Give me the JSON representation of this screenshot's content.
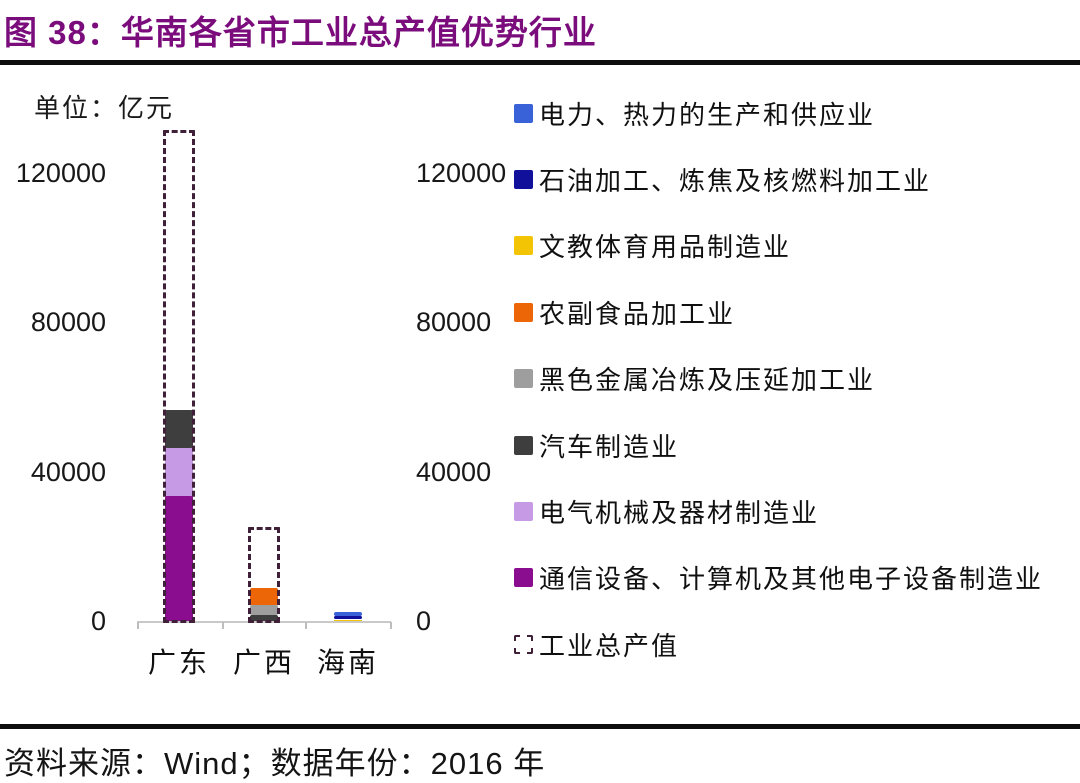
{
  "header": {
    "title": "图 38：华南各省市工业总产值优势行业"
  },
  "chart": {
    "unit_label": "单位：亿元"
  },
  "chart_data": {
    "type": "bar",
    "subtype": "stacked",
    "title": "华南各省市工业总产值优势行业",
    "unit": "亿元",
    "categories": [
      "广东",
      "广西",
      "海南"
    ],
    "series": [
      {
        "name": "电力、热力的生产和供应业",
        "color": "#3a62d8",
        "values": [
          0,
          0,
          1000
        ]
      },
      {
        "name": "石油加工、炼焦及核燃料加工业",
        "color": "#10109b",
        "values": [
          0,
          0,
          1000
        ]
      },
      {
        "name": "文教体育用品制造业",
        "color": "#f2c404",
        "values": [
          0,
          0,
          400
        ]
      },
      {
        "name": "农副食品加工业",
        "color": "#ec6608",
        "values": [
          0,
          4600,
          0
        ]
      },
      {
        "name": "黑色金属冶炼及压延加工业",
        "color": "#9e9e9e",
        "values": [
          0,
          2500,
          0
        ]
      },
      {
        "name": "汽车制造业",
        "color": "#3e3e3e",
        "values": [
          10200,
          1700,
          0
        ]
      },
      {
        "name": "电气机械及器材制造业",
        "color": "#c79ae6",
        "values": [
          13000,
          0,
          0
        ]
      },
      {
        "name": "通信设备、计算机及其他电子设备制造业",
        "color": "#8a0d8f",
        "values": [
          33400,
          0,
          0
        ]
      }
    ],
    "outline_series": {
      "name": "工业总产值",
      "style": "dashed",
      "color": "#3f2038",
      "values": [
        131500,
        25200,
        null
      ]
    },
    "stack_order": "reversed",
    "y_ticks": [
      0,
      40000,
      80000,
      120000
    ],
    "ylim": [
      0,
      133000
    ],
    "grid": false,
    "legend_position": "right",
    "dual_axis_labels": true
  },
  "footer": {
    "source": "资料来源：Wind；数据年份：2016 年"
  }
}
